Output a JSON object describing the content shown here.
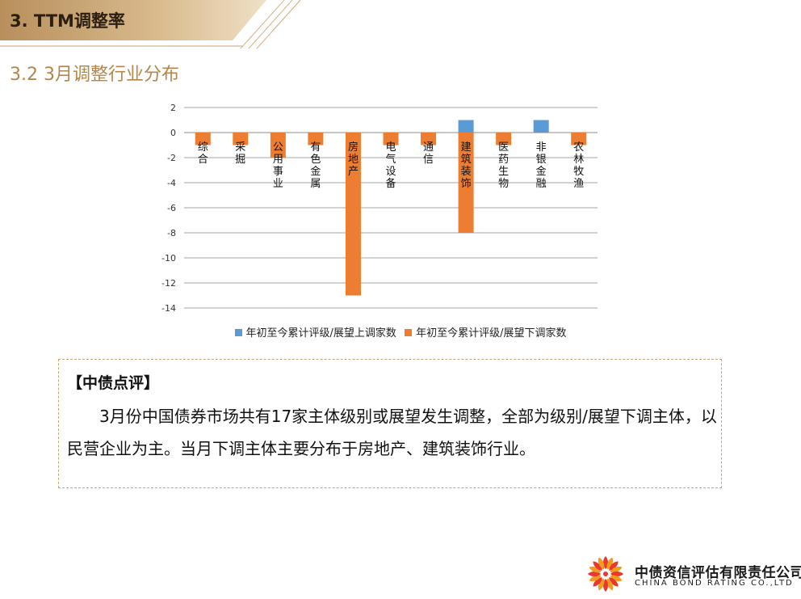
{
  "header": {
    "title": "3. TTM调整率"
  },
  "section": {
    "title": "3.2 3月调整行业分布"
  },
  "colors": {
    "series_up": "#5b9bd5",
    "series_down": "#ed7d31",
    "gridline": "#a6a6a6",
    "banner_gold": "#c9a274"
  },
  "chart_data": {
    "type": "bar",
    "categories": [
      "综合",
      "采掘",
      "公用事业",
      "有色金属",
      "房地产",
      "电气设备",
      "通信",
      "建筑装饰",
      "医药生物",
      "非银金融",
      "农林牧渔"
    ],
    "series": [
      {
        "name": "年初至今累计评级/展望上调家数",
        "values": [
          0,
          0,
          0,
          0,
          0,
          0,
          0,
          1,
          0,
          1,
          0
        ]
      },
      {
        "name": "年初至今累计评级/展望下调家数",
        "values": [
          -1,
          -1,
          -2,
          -1,
          -13,
          -1,
          -1,
          -8,
          -1,
          0,
          -1
        ]
      }
    ],
    "ylim": [
      -14,
      2
    ],
    "yticks": [
      2,
      0,
      -2,
      -4,
      -6,
      -8,
      -10,
      -12,
      -14
    ],
    "grid": true,
    "legend": "bottom"
  },
  "comment": {
    "heading": "【中债点评】",
    "body": "3月份中国债券市场共有17家主体级别或展望发生调整，全部为级别/展望下调主体，以民营企业为主。当月下调主体主要分布于房地产、建筑装饰行业。"
  },
  "footer": {
    "company_cn": "中债资信评估有限责任公司",
    "company_en": "CHINA BOND RATING CO.,LTD",
    "logo_icon": "company-logo-flower-icon"
  }
}
